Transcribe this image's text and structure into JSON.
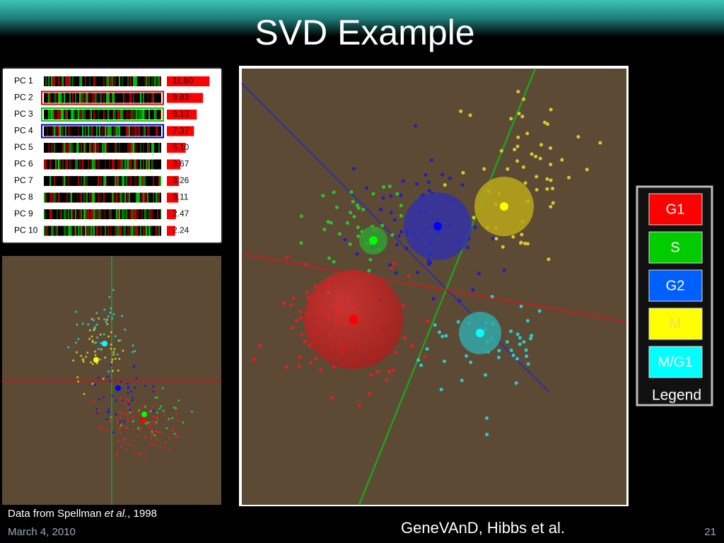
{
  "title": "SVD Example",
  "pcs": [
    {
      "label": "PC 1",
      "value": "11.60"
    },
    {
      "label": "PC 2",
      "value": "9.83"
    },
    {
      "label": "PC 3",
      "value": "8.13"
    },
    {
      "label": "PC 4",
      "value": "7.37"
    },
    {
      "label": "PC 5",
      "value": "5.10"
    },
    {
      "label": "PC 6",
      "value": "3.67"
    },
    {
      "label": "PC 7",
      "value": "3.26"
    },
    {
      "label": "PC 8",
      "value": "3.11"
    },
    {
      "label": "PC 9",
      "value": "2.47"
    },
    {
      "label": "PC 10",
      "value": "2.24"
    }
  ],
  "legend": {
    "items": [
      "G1",
      "S",
      "G2",
      "M",
      "M/G1"
    ],
    "title": "Legend"
  },
  "footer": {
    "source": "Data from Spellman ",
    "source_italic": "et al.",
    "source_year": ", 1998",
    "date": "March 4, 2010",
    "center": "GeneVAnD, Hibbs et al.",
    "page": "21"
  }
}
